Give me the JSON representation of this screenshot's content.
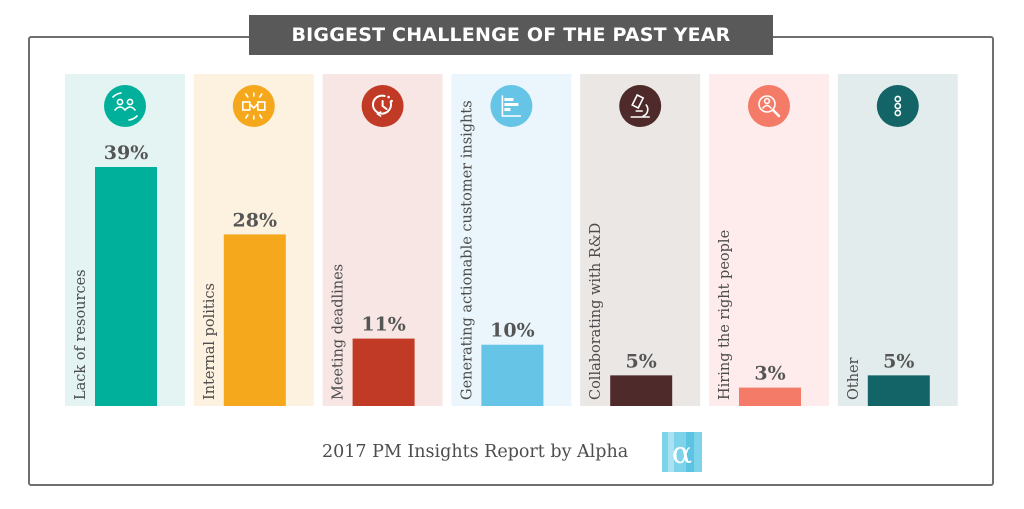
{
  "header": {
    "title": "BIGGEST CHALLENGE OF THE PAST YEAR"
  },
  "footer": {
    "text": "2017 PM Insights Report by Alpha",
    "logo_glyph": "α"
  },
  "colors": {
    "bars": [
      "#00b09b",
      "#f5a81c",
      "#c13a25",
      "#66c5e6",
      "#4e2a2a",
      "#f47b68",
      "#136466"
    ],
    "panels": [
      "#e3f4f3",
      "#fdf1df",
      "#f7e6e4",
      "#eaf6fb",
      "#ebe7e5",
      "#fdeceb",
      "#e3ecec"
    ],
    "icon_circles": [
      "#00b09b",
      "#f5a81c",
      "#c13a25",
      "#66c5e6",
      "#4e2a2a",
      "#f47b68",
      "#136466"
    ]
  },
  "icons": [
    "people-cycle-icon",
    "handshake-icon",
    "deadline-timer-icon",
    "bar-chart-icon",
    "microscope-icon",
    "person-search-icon",
    "more-dots-icon"
  ],
  "chart_data": {
    "type": "bar",
    "title": "BIGGEST CHALLENGE OF THE PAST YEAR",
    "categories": [
      "Lack of resources",
      "Internal politics",
      "Meeting deadlines",
      "Generating actionable customer insights",
      "Collaborating with R&D",
      "Hiring the right people",
      "Other"
    ],
    "values": [
      39,
      28,
      11,
      10,
      5,
      3,
      5
    ],
    "value_labels": [
      "39%",
      "28%",
      "11%",
      "10%",
      "5%",
      "3%",
      "5%"
    ],
    "ylim": [
      0,
      39
    ],
    "unit": "%",
    "grid": false,
    "legend": "none"
  }
}
